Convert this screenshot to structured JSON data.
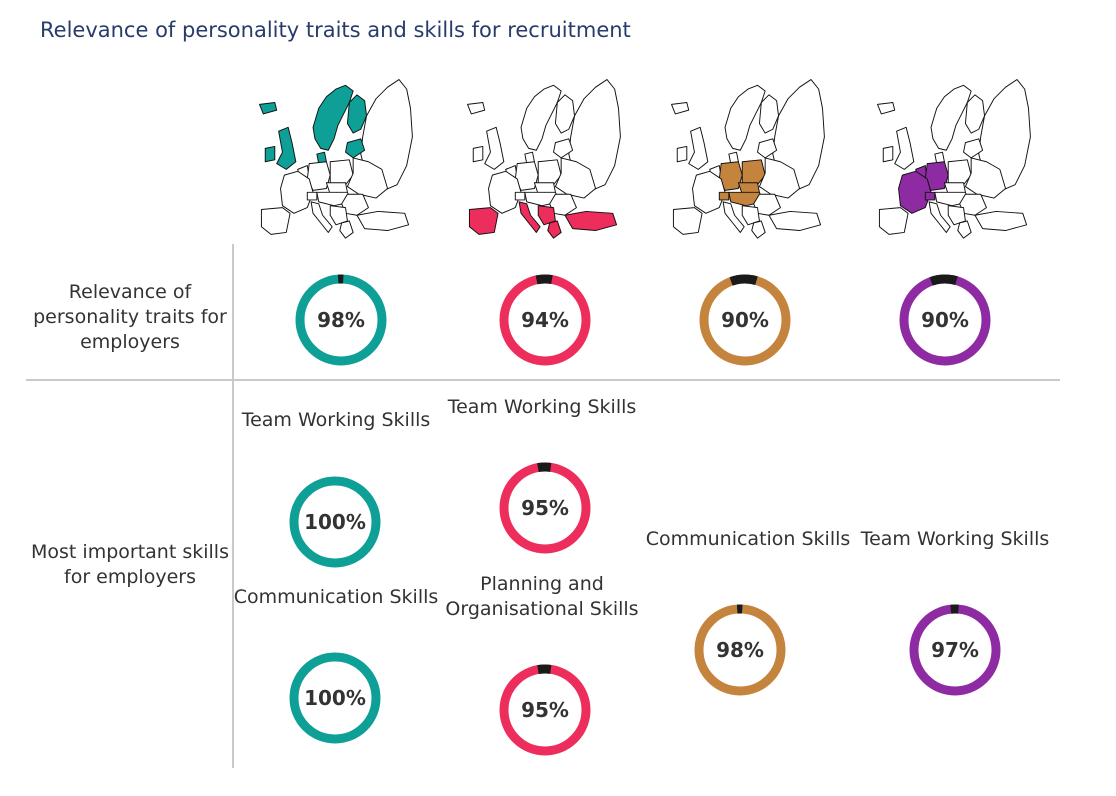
{
  "title": "Relevance of personality traits and skills for recruitment",
  "row_labels": {
    "personality": "Relevance of personality traits for employers",
    "skills": "Most important skills for employers"
  },
  "colors": {
    "nordic": "#0e9f96",
    "southern": "#ed2d5b",
    "central": "#c5843d",
    "western": "#8e2ba3",
    "ring_gap": "#1a1a1a"
  },
  "maps": [
    {
      "region_icon": "europe-map-nordic-uk-icon",
      "color": "#0e9f96"
    },
    {
      "region_icon": "europe-map-southern-icon",
      "color": "#ed2d5b"
    },
    {
      "region_icon": "europe-map-central-icon",
      "color": "#c5843d"
    },
    {
      "region_icon": "europe-map-western-icon",
      "color": "#8e2ba3"
    }
  ],
  "chart_data": [
    {
      "type": "donut",
      "title": "Relevance of personality traits for employers",
      "series": [
        {
          "values": [
            98
          ],
          "labels": [
            "98%"
          ],
          "color": "#0e9f96"
        },
        {
          "values": [
            94
          ],
          "labels": [
            "94%"
          ],
          "color": "#ed2d5b"
        },
        {
          "values": [
            90
          ],
          "labels": [
            "90%"
          ],
          "color": "#c5843d"
        },
        {
          "values": [
            90
          ],
          "labels": [
            "90%"
          ],
          "color": "#8e2ba3"
        }
      ]
    },
    {
      "type": "donut",
      "title": "Most important skills for employers",
      "series": [
        {
          "skills": [
            "Team Working Skills",
            "Communication Skills"
          ],
          "values": [
            100,
            100
          ],
          "labels": [
            "100%",
            "100%"
          ],
          "color": "#0e9f96"
        },
        {
          "skills": [
            "Team Working Skills",
            "Planning and Organisational Skills"
          ],
          "values": [
            95,
            95
          ],
          "labels": [
            "95%",
            "95%"
          ],
          "color": "#ed2d5b"
        },
        {
          "skills": [
            "Communication Skills"
          ],
          "values": [
            98
          ],
          "labels": [
            "98%"
          ],
          "color": "#c5843d"
        },
        {
          "skills": [
            "Team Working Skills"
          ],
          "values": [
            97
          ],
          "labels": [
            "97%"
          ],
          "color": "#8e2ba3"
        }
      ]
    }
  ]
}
